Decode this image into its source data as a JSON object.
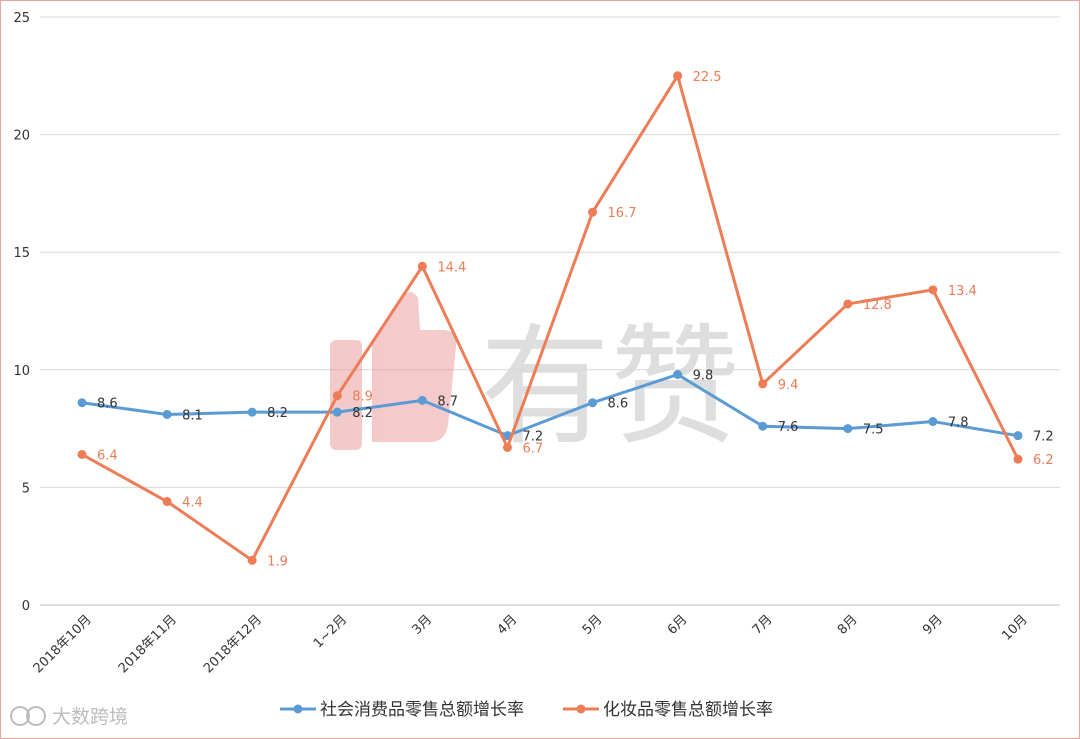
{
  "chart_data": {
    "type": "line",
    "categories": [
      "2018年10月",
      "2018年11月",
      "2018年12月",
      "1~2月",
      "3月",
      "4月",
      "5月",
      "6月",
      "7月",
      "8月",
      "9月",
      "10月"
    ],
    "series": [
      {
        "name": "社会消费品零售总额增长率",
        "color": "#5b9bd5",
        "values": [
          8.6,
          8.1,
          8.2,
          8.2,
          8.7,
          7.2,
          8.6,
          9.8,
          7.6,
          7.5,
          7.8,
          7.2
        ],
        "labels": [
          "8.6",
          "8.1",
          "8.2",
          "8.2",
          "8.7",
          "7.2",
          "8.6",
          "9.8",
          "7.6",
          "7.5",
          "7.8",
          "7.2"
        ]
      },
      {
        "name": "化妆品零售总额增长率",
        "color": "#ed7d56",
        "values": [
          6.4,
          4.4,
          1.9,
          8.9,
          14.4,
          6.7,
          16.7,
          22.5,
          9.4,
          12.8,
          13.4,
          6.2
        ],
        "labels": [
          "6.4",
          "4.4",
          "1.9",
          "8.9",
          "14.4",
          "6.7",
          "16.7",
          "22.5",
          "9.4",
          "12.8",
          "13.4",
          "6.2"
        ]
      }
    ],
    "yticks": [
      "0",
      "5",
      "10",
      "15",
      "20",
      "25"
    ],
    "ylim": [
      0,
      25
    ],
    "grid": true,
    "legend_position": "bottom"
  },
  "watermark": {
    "text": "有赞",
    "icon": "thumbs-up-icon",
    "color": "#e88a8a"
  },
  "corner_logo": {
    "text": "大数跨境",
    "icon": "logo-icon"
  }
}
